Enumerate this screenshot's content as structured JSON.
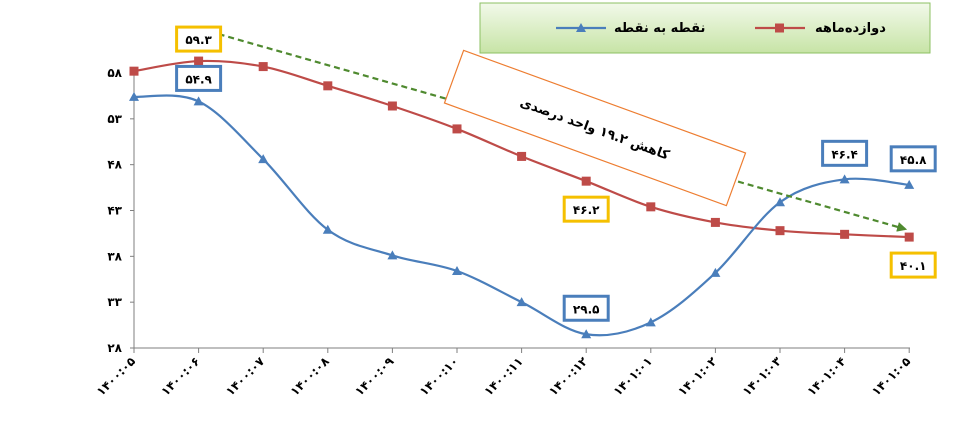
{
  "chart_data": {
    "type": "line",
    "categories": [
      "۱۴۰۰:۰۵",
      "۱۴۰۰:۰۶",
      "۱۴۰۰:۰۷",
      "۱۴۰۰:۰۸",
      "۱۴۰۰:۰۹",
      "۱۴۰۰:۱۰",
      "۱۴۰۰:۱۱",
      "۱۴۰۰:۱۲",
      "۱۴۰۱:۰۱",
      "۱۴۰۱:۰۲",
      "۱۴۰۱:۰۳",
      "۱۴۰۱:۰۴",
      "۱۴۰۱:۰۵"
    ],
    "series": [
      {
        "name": "نقطه به نقطه",
        "color": "#4a7ebb",
        "marker": "triangle",
        "values": [
          55.4,
          54.9,
          48.6,
          40.9,
          38.1,
          36.4,
          33.0,
          29.5,
          30.8,
          36.2,
          43.9,
          46.4,
          45.8
        ]
      },
      {
        "name": "دوازده‌ماهه",
        "color": "#be4b48",
        "marker": "square",
        "values": [
          58.2,
          59.3,
          58.7,
          56.6,
          54.4,
          51.9,
          48.9,
          46.2,
          43.4,
          41.7,
          40.8,
          40.4,
          40.1
        ]
      }
    ],
    "ylim": [
      28,
      58
    ],
    "yticks": [
      28,
      33,
      38,
      43,
      48,
      53,
      58
    ],
    "ytick_labels": [
      "۲۸",
      "۳۳",
      "۳۸",
      "۴۳",
      "۴۸",
      "۵۳",
      "۵۸"
    ],
    "legend_position": "top-right",
    "annotations": [
      {
        "text": "۵۹.۳",
        "series": 1,
        "index": 1,
        "style": "gold",
        "position": "above"
      },
      {
        "text": "۵۴.۹",
        "series": 0,
        "index": 1,
        "style": "blue",
        "position": "above"
      },
      {
        "text": "۴۶.۲",
        "series": 1,
        "index": 7,
        "style": "gold",
        "position": "below"
      },
      {
        "text": "۲۹.۵",
        "series": 0,
        "index": 7,
        "style": "blue",
        "position": "above"
      },
      {
        "text": "۴۶.۴",
        "series": 0,
        "index": 11,
        "style": "blue",
        "position": "above"
      },
      {
        "text": "۴۵.۸",
        "series": 0,
        "index": 12,
        "style": "blue",
        "position": "above"
      },
      {
        "text": "۴۰.۱",
        "series": 1,
        "index": 12,
        "style": "gold",
        "position": "below"
      }
    ],
    "callout": {
      "text": "کاهش ۱۹.۲ واحد درصدی",
      "border_color": "#ed7d31"
    },
    "trend_arrow": {
      "from_index": 1,
      "from_value": 59.3,
      "to_index": 12,
      "to_value": 40.1,
      "color": "#4f8a2f"
    },
    "annotation_colors": {
      "gold": "#f5c000",
      "blue": "#4a7ebb"
    }
  }
}
